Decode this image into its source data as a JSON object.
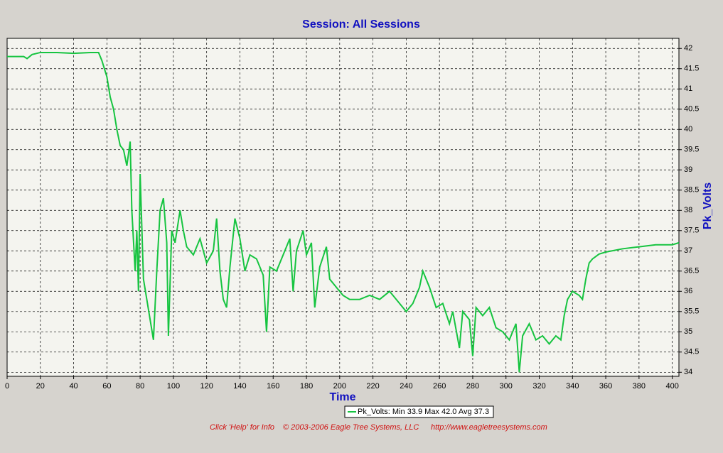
{
  "chart_data": {
    "type": "line",
    "title": "Session: All Sessions",
    "xlabel": "Time",
    "ylabel": "Pk_Volts",
    "legend": "Pk_Volts:  Min 33.9 Max 42.0 Avg 37.3",
    "footer": [
      "Click 'Help' for Info",
      "© 2003-2006 Eagle Tree Systems, LLC",
      "http://www.eagletreesystems.com"
    ],
    "y_axis_side": "right",
    "grid": true,
    "xlim": [
      0,
      404
    ],
    "xticks": [
      0,
      20,
      40,
      60,
      80,
      100,
      120,
      140,
      160,
      180,
      200,
      220,
      240,
      260,
      280,
      300,
      320,
      340,
      360,
      380,
      400
    ],
    "ylim": [
      33.9,
      42.25
    ],
    "yticks": [
      34,
      34.5,
      35,
      35.5,
      36,
      36.5,
      37,
      37.5,
      38,
      38.5,
      39,
      39.5,
      40,
      40.5,
      41,
      41.5,
      42
    ],
    "series": [
      {
        "name": "Pk_Volts",
        "color": "#16c440",
        "x": [
          0,
          10,
          12,
          15,
          20,
          30,
          40,
          50,
          55,
          57,
          60,
          62,
          64,
          66,
          68,
          70,
          72,
          74,
          75,
          77,
          78,
          79,
          80,
          82,
          84,
          86,
          88,
          90,
          92,
          94,
          96,
          97,
          99,
          101,
          104,
          106,
          108,
          112,
          116,
          120,
          124,
          126,
          128,
          130,
          132,
          134,
          137,
          140,
          143,
          146,
          150,
          154,
          156,
          158,
          162,
          166,
          170,
          172,
          174,
          178,
          180,
          183,
          185,
          188,
          192,
          194,
          198,
          202,
          206,
          212,
          218,
          224,
          230,
          236,
          240,
          244,
          248,
          250,
          254,
          258,
          262,
          266,
          268,
          272,
          274,
          278,
          280,
          282,
          286,
          290,
          294,
          298,
          302,
          306,
          308,
          310,
          314,
          318,
          322,
          326,
          330,
          333,
          335,
          337,
          340,
          344,
          346,
          348,
          350,
          352,
          356,
          360,
          370,
          380,
          390,
          400,
          404
        ],
        "values": [
          41.8,
          41.8,
          41.75,
          41.85,
          41.9,
          41.9,
          41.88,
          41.9,
          41.9,
          41.7,
          41.3,
          40.8,
          40.5,
          40.0,
          39.6,
          39.5,
          39.1,
          39.7,
          38.0,
          36.5,
          37.5,
          36.0,
          38.9,
          36.3,
          35.8,
          35.3,
          34.8,
          36.5,
          38.0,
          38.3,
          37.2,
          34.9,
          37.5,
          37.2,
          38.0,
          37.5,
          37.1,
          36.9,
          37.3,
          36.7,
          37.0,
          37.8,
          36.5,
          35.8,
          35.6,
          36.6,
          37.8,
          37.3,
          36.5,
          36.9,
          36.8,
          36.4,
          35.0,
          36.6,
          36.5,
          36.9,
          37.3,
          36.0,
          37.0,
          37.5,
          36.9,
          37.2,
          35.6,
          36.6,
          37.1,
          36.3,
          36.1,
          35.9,
          35.8,
          35.8,
          35.9,
          35.8,
          36.0,
          35.7,
          35.5,
          35.7,
          36.1,
          36.5,
          36.1,
          35.6,
          35.7,
          35.2,
          35.5,
          34.6,
          35.5,
          35.3,
          34.4,
          35.6,
          35.4,
          35.6,
          35.1,
          35.0,
          34.8,
          35.2,
          34.0,
          34.9,
          35.2,
          34.8,
          34.9,
          34.7,
          34.9,
          34.8,
          35.4,
          35.8,
          36.0,
          35.9,
          35.8,
          36.3,
          36.7,
          36.8,
          36.92,
          36.97,
          37.05,
          37.1,
          37.15,
          37.15,
          37.2
        ]
      }
    ]
  }
}
